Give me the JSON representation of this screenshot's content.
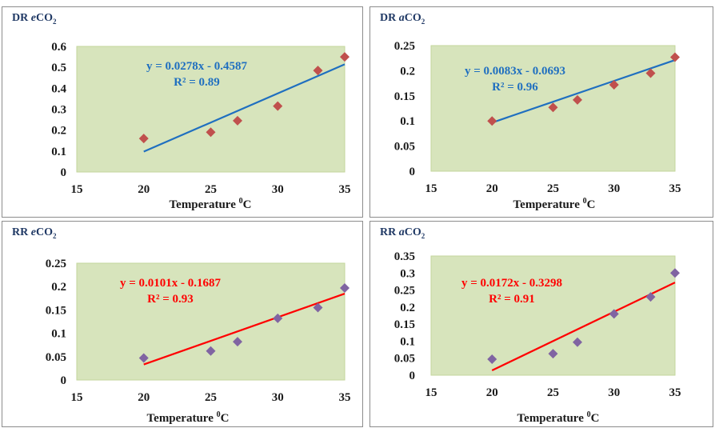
{
  "x_axis_unit_label": "Temperature",
  "x_axis_unit_degree": "0",
  "x_axis_unit": "C",
  "chart_data": [
    {
      "type": "scatter",
      "title_prefix": "DR",
      "title_italic": "e",
      "title_gas": "CO",
      "title_sub": "2",
      "xlabel": "Temperature 0C",
      "xlim": [
        15,
        35
      ],
      "ylim": [
        0,
        0.6
      ],
      "xticks": [
        "15",
        "20",
        "25",
        "30",
        "35"
      ],
      "yticks": [
        "0",
        "0.1",
        "0.2",
        "0.3",
        "0.4",
        "0.5",
        "0.6"
      ],
      "x": [
        20,
        25,
        27,
        30,
        33,
        35
      ],
      "values": [
        0.16,
        0.19,
        0.245,
        0.315,
        0.485,
        0.55
      ],
      "trendline": {
        "slope": 0.0278,
        "intercept": -0.4587,
        "x_from": 20,
        "x_to": 35
      },
      "equation": "y = 0.0278x - 0.4587",
      "r2": "R² = 0.89",
      "marker_color": "#c0504d",
      "line_color": "#1f6fc0",
      "equation_color": "#1f6fc0"
    },
    {
      "type": "scatter",
      "title_prefix": "DR",
      "title_italic": "a",
      "title_gas": "CO",
      "title_sub": "2",
      "xlabel": "Temperature 0C",
      "xlim": [
        15,
        35
      ],
      "ylim": [
        0,
        0.25
      ],
      "xticks": [
        "15",
        "20",
        "25",
        "30",
        "35"
      ],
      "yticks": [
        "0",
        "0.05",
        "0.1",
        "0.15",
        "0.2",
        "0.25"
      ],
      "x": [
        20,
        25,
        27,
        30,
        33,
        35
      ],
      "values": [
        0.1,
        0.127,
        0.142,
        0.172,
        0.195,
        0.227
      ],
      "trendline": {
        "slope": 0.0083,
        "intercept": -0.0693,
        "x_from": 20,
        "x_to": 35
      },
      "equation": "y = 0.0083x - 0.0693",
      "r2": "R² = 0.96",
      "marker_color": "#c0504d",
      "line_color": "#1f6fc0",
      "equation_color": "#1f6fc0"
    },
    {
      "type": "scatter",
      "title_prefix": "RR",
      "title_italic": "e",
      "title_gas": "CO",
      "title_sub": "2",
      "xlabel": "Temperature 0C",
      "xlim": [
        15,
        35
      ],
      "ylim": [
        0,
        0.25
      ],
      "xticks": [
        "15",
        "20",
        "25",
        "30",
        "35"
      ],
      "yticks": [
        "0",
        "0.05",
        "0.1",
        "0.15",
        "0.2",
        "0.25"
      ],
      "x": [
        20,
        25,
        27,
        30,
        33,
        35
      ],
      "values": [
        0.047,
        0.062,
        0.082,
        0.132,
        0.155,
        0.197
      ],
      "trendline": {
        "slope": 0.0101,
        "intercept": -0.1687,
        "x_from": 20,
        "x_to": 35
      },
      "equation": "y = 0.0101x - 0.1687",
      "r2": "R² = 0.93",
      "marker_color": "#8064a2",
      "line_color": "#ff0000",
      "equation_color": "#ff0000"
    },
    {
      "type": "scatter",
      "title_prefix": "RR",
      "title_italic": "a",
      "title_gas": "CO",
      "title_sub": "2",
      "xlabel": "Temperature 0C",
      "xlim": [
        15,
        35
      ],
      "ylim": [
        0,
        0.35
      ],
      "xticks": [
        "15",
        "20",
        "25",
        "30",
        "35"
      ],
      "yticks": [
        "0",
        "0.05",
        "0.1",
        "0.15",
        "0.2",
        "0.25",
        "0.3",
        "0.35"
      ],
      "x": [
        20,
        25,
        27,
        30,
        33,
        35
      ],
      "values": [
        0.047,
        0.063,
        0.097,
        0.18,
        0.23,
        0.3
      ],
      "trendline": {
        "slope": 0.0172,
        "intercept": -0.3298,
        "x_from": 20,
        "x_to": 35
      },
      "equation": "y = 0.0172x - 0.3298",
      "r2": "R² = 0.91",
      "marker_color": "#8064a2",
      "line_color": "#ff0000",
      "equation_color": "#ff0000"
    }
  ],
  "plot_area_color": "#d7e4bc",
  "plot_area_border": "#c3d69b"
}
